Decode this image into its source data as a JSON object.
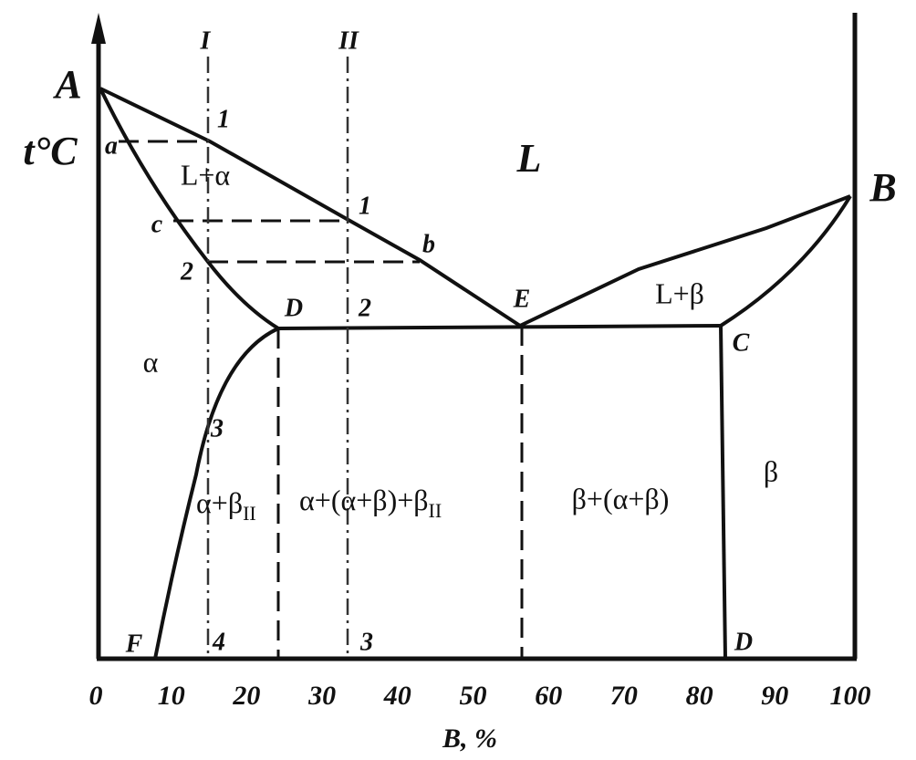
{
  "axes": {
    "y_label": "t°C",
    "x_label": "B, %",
    "x_ticks": [
      "0",
      "10",
      "20",
      "30",
      "40",
      "50",
      "60",
      "70",
      "80",
      "90",
      "100"
    ]
  },
  "alloys": [
    "I",
    "II"
  ],
  "points": {
    "A": "A",
    "B": "B",
    "a": "a",
    "b": "b",
    "c": "c",
    "D_top": "D",
    "E": "E",
    "C": "C",
    "F": "F",
    "D_bottom": "D",
    "alloy1_point1": "1",
    "alloy1_point2": "2",
    "alloy1_point3": "3",
    "alloy1_point4": "4",
    "alloy2_point1": "1",
    "alloy2_point2": "2",
    "alloy2_point3": "3"
  },
  "regions": {
    "liquid": "L",
    "liquid_alpha": "L+α",
    "liquid_beta": "L+β",
    "alpha": "α",
    "beta": "β",
    "alpha_beta2": {
      "main": "α+β",
      "sub": "II"
    },
    "alpha_eutectic_beta2": {
      "main": "α+(α+β)+β",
      "sub": "II"
    },
    "beta_eutectic": "β+(α+β)"
  }
}
